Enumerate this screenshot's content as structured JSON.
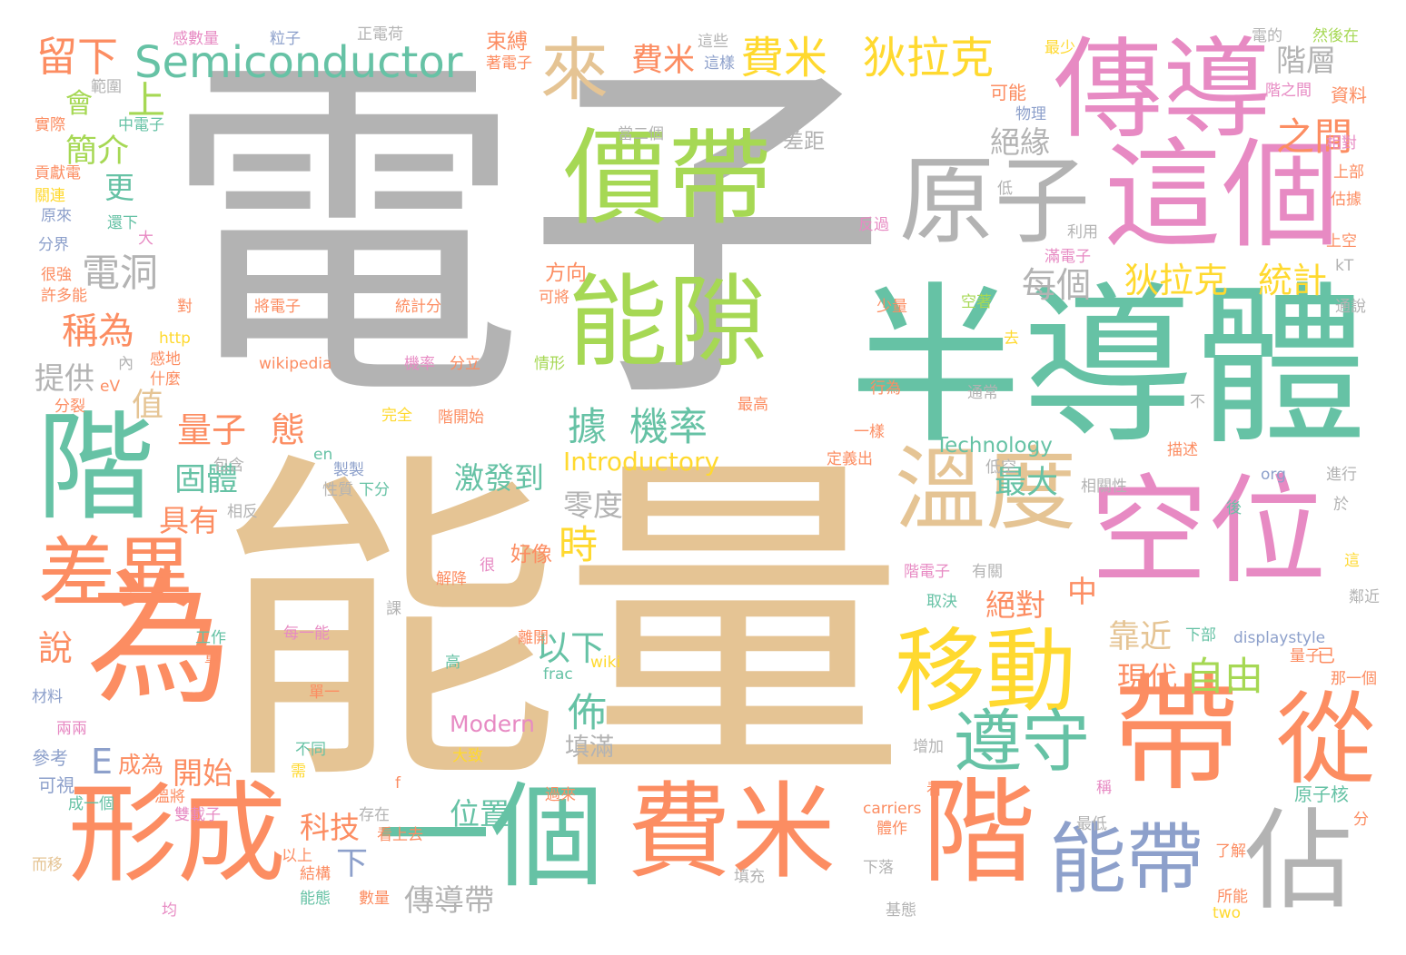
{
  "palette": {
    "grey": "#b3b3b3",
    "tan": "#e5c494",
    "teal": "#66c2a5",
    "green": "#a6d854",
    "pink": "#e78ac3",
    "orange": "#fc8d62",
    "yellow": "#ffd92f",
    "blue": "#8da0cb"
  },
  "words": [
    {
      "text": "電子",
      "color": "grey"
    },
    {
      "text": "能量",
      "color": "tan"
    },
    {
      "text": "半導體",
      "color": "teal"
    },
    {
      "text": "傳導",
      "color": "pink"
    },
    {
      "text": "這個",
      "color": "pink"
    },
    {
      "text": "空位",
      "color": "pink"
    },
    {
      "text": "帶",
      "color": "orange"
    },
    {
      "text": "從",
      "color": "orange"
    },
    {
      "text": "價帶",
      "color": "green"
    },
    {
      "text": "能隙",
      "color": "green"
    },
    {
      "text": "原子",
      "color": "grey"
    },
    {
      "text": "溫度",
      "color": "tan"
    },
    {
      "text": "移動",
      "color": "yellow"
    },
    {
      "text": "為",
      "color": "orange"
    },
    {
      "text": "階",
      "color": "teal"
    },
    {
      "text": "形成",
      "color": "orange"
    },
    {
      "text": "一個",
      "color": "teal"
    },
    {
      "text": "費米",
      "color": "orange"
    },
    {
      "text": "階",
      "color": "orange"
    },
    {
      "text": "能帶",
      "color": "blue"
    },
    {
      "text": "佔",
      "color": "grey"
    },
    {
      "text": "差異",
      "color": "orange"
    },
    {
      "text": "遵守",
      "color": "teal"
    },
    {
      "text": "來",
      "color": "tan"
    },
    {
      "text": "上",
      "color": "green"
    },
    {
      "text": "Semiconductor",
      "color": "teal"
    },
    {
      "text": "留下",
      "color": "orange"
    },
    {
      "text": "費米",
      "color": "yellow"
    },
    {
      "text": "狄拉克",
      "color": "yellow"
    },
    {
      "text": "費米",
      "color": "orange"
    },
    {
      "text": "階層",
      "color": "grey"
    },
    {
      "text": "之間",
      "color": "orange"
    },
    {
      "text": "電洞",
      "color": "grey"
    },
    {
      "text": "稱為",
      "color": "orange"
    },
    {
      "text": "簡介",
      "color": "green"
    },
    {
      "text": "更",
      "color": "teal"
    },
    {
      "text": "會",
      "color": "green"
    },
    {
      "text": "提供",
      "color": "grey"
    },
    {
      "text": "值",
      "color": "tan"
    },
    {
      "text": "量子",
      "color": "orange"
    },
    {
      "text": "態",
      "color": "orange"
    },
    {
      "text": "固體",
      "color": "teal"
    },
    {
      "text": "具有",
      "color": "orange"
    },
    {
      "text": "據",
      "color": "teal"
    },
    {
      "text": "機率",
      "color": "teal"
    },
    {
      "text": "絕緣",
      "color": "grey"
    },
    {
      "text": "每個",
      "color": "grey"
    },
    {
      "text": "狄拉克",
      "color": "yellow"
    },
    {
      "text": "統計",
      "color": "yellow"
    },
    {
      "text": "激發到",
      "color": "teal"
    },
    {
      "text": "零度",
      "color": "grey"
    },
    {
      "text": "時",
      "color": "yellow"
    },
    {
      "text": "最大",
      "color": "teal"
    },
    {
      "text": "絕對",
      "color": "orange"
    },
    {
      "text": "中",
      "color": "orange"
    },
    {
      "text": "靠近",
      "color": "tan"
    },
    {
      "text": "自由",
      "color": "green"
    },
    {
      "text": "現代",
      "color": "orange"
    },
    {
      "text": "以下",
      "color": "teal"
    },
    {
      "text": "佈",
      "color": "teal"
    },
    {
      "text": "說",
      "color": "orange"
    },
    {
      "text": "E",
      "color": "blue"
    },
    {
      "text": "成為",
      "color": "orange"
    },
    {
      "text": "開始",
      "color": "orange"
    },
    {
      "text": "Introductory",
      "color": "yellow"
    },
    {
      "text": "Technology",
      "color": "teal"
    },
    {
      "text": "Modern",
      "color": "pink"
    },
    {
      "text": "位置",
      "color": "teal"
    },
    {
      "text": "填滿",
      "color": "grey"
    },
    {
      "text": "科技",
      "color": "orange"
    },
    {
      "text": "下",
      "color": "blue"
    },
    {
      "text": "傳導帶",
      "color": "grey"
    },
    {
      "text": "好像",
      "color": "orange"
    },
    {
      "text": "方向",
      "color": "orange"
    },
    {
      "text": "差距",
      "color": "grey"
    },
    {
      "text": "感數量",
      "color": "pink"
    },
    {
      "text": "粒子",
      "color": "blue"
    },
    {
      "text": "正電荷",
      "color": "grey"
    },
    {
      "text": "束縛",
      "color": "orange"
    },
    {
      "text": "這些",
      "color": "grey"
    },
    {
      "text": "最少",
      "color": "yellow"
    },
    {
      "text": "電的",
      "color": "grey"
    },
    {
      "text": "然後在",
      "color": "green"
    },
    {
      "text": "著電子",
      "color": "orange"
    },
    {
      "text": "這樣",
      "color": "blue"
    },
    {
      "text": "範圍",
      "color": "grey"
    },
    {
      "text": "可能",
      "color": "orange"
    },
    {
      "text": "階之間",
      "color": "pink"
    },
    {
      "text": "資料",
      "color": "orange"
    },
    {
      "text": "實際",
      "color": "orange"
    },
    {
      "text": "中電子",
      "color": "teal"
    },
    {
      "text": "物理",
      "color": "blue"
    },
    {
      "text": "當二個",
      "color": "grey"
    },
    {
      "text": "相對",
      "color": "pink"
    },
    {
      "text": "貢獻電",
      "color": "orange"
    },
    {
      "text": "上部",
      "color": "orange"
    },
    {
      "text": "關連",
      "color": "yellow"
    },
    {
      "text": "低",
      "color": "grey"
    },
    {
      "text": "估據",
      "color": "orange"
    },
    {
      "text": "原來",
      "color": "blue"
    },
    {
      "text": "還下",
      "color": "teal"
    },
    {
      "text": "大",
      "color": "pink"
    },
    {
      "text": "反過",
      "color": "pink"
    },
    {
      "text": "利用",
      "color": "grey"
    },
    {
      "text": "上空",
      "color": "orange"
    },
    {
      "text": "分界",
      "color": "blue"
    },
    {
      "text": "滿電子",
      "color": "pink"
    },
    {
      "text": "kT",
      "color": "grey"
    },
    {
      "text": "很強",
      "color": "orange"
    },
    {
      "text": "許多能",
      "color": "orange"
    },
    {
      "text": "對",
      "color": "orange"
    },
    {
      "text": "將電子",
      "color": "orange"
    },
    {
      "text": "統計分",
      "color": "orange"
    },
    {
      "text": "可將",
      "color": "orange"
    },
    {
      "text": "少量",
      "color": "orange"
    },
    {
      "text": "空著",
      "color": "green"
    },
    {
      "text": "通說",
      "color": "grey"
    },
    {
      "text": "http",
      "color": "yellow"
    },
    {
      "text": "感地",
      "color": "orange"
    },
    {
      "text": "內",
      "color": "grey"
    },
    {
      "text": "wikipedia",
      "color": "orange"
    },
    {
      "text": "機率",
      "color": "pink"
    },
    {
      "text": "分立",
      "color": "orange"
    },
    {
      "text": "情形",
      "color": "green"
    },
    {
      "text": "去",
      "color": "yellow"
    },
    {
      "text": "eV",
      "color": "orange"
    },
    {
      "text": "什麼",
      "color": "orange"
    },
    {
      "text": "行為",
      "color": "orange"
    },
    {
      "text": "通常",
      "color": "grey"
    },
    {
      "text": "分裂",
      "color": "orange"
    },
    {
      "text": "完全",
      "color": "yellow"
    },
    {
      "text": "階開始",
      "color": "orange"
    },
    {
      "text": "最高",
      "color": "orange"
    },
    {
      "text": "不",
      "color": "grey"
    },
    {
      "text": "一樣",
      "color": "orange"
    },
    {
      "text": "en",
      "color": "teal"
    },
    {
      "text": "包含",
      "color": "grey"
    },
    {
      "text": "製製",
      "color": "blue"
    },
    {
      "text": "描述",
      "color": "orange"
    },
    {
      "text": "定義出",
      "color": "orange"
    },
    {
      "text": "低空",
      "color": "grey"
    },
    {
      "text": "org",
      "color": "blue"
    },
    {
      "text": "進行",
      "color": "grey"
    },
    {
      "text": "性質",
      "color": "grey"
    },
    {
      "text": "下分",
      "color": "teal"
    },
    {
      "text": "相關性",
      "color": "grey"
    },
    {
      "text": "於",
      "color": "grey"
    },
    {
      "text": "相反",
      "color": "grey"
    },
    {
      "text": "後",
      "color": "teal"
    },
    {
      "text": "這",
      "color": "yellow"
    },
    {
      "text": "解降",
      "color": "orange"
    },
    {
      "text": "很",
      "color": "pink"
    },
    {
      "text": "階電子",
      "color": "pink"
    },
    {
      "text": "有關",
      "color": "grey"
    },
    {
      "text": "取決",
      "color": "teal"
    },
    {
      "text": "鄰近",
      "color": "grey"
    },
    {
      "text": "課",
      "color": "grey"
    },
    {
      "text": "工作",
      "color": "teal"
    },
    {
      "text": "每一能",
      "color": "pink"
    },
    {
      "text": "離開",
      "color": "orange"
    },
    {
      "text": "下部",
      "color": "teal"
    },
    {
      "text": "displaystyle",
      "color": "blue"
    },
    {
      "text": "量",
      "color": "orange"
    },
    {
      "text": "高",
      "color": "teal"
    },
    {
      "text": "wiki",
      "color": "yellow"
    },
    {
      "text": "frac",
      "color": "teal"
    },
    {
      "text": "量子",
      "color": "orange"
    },
    {
      "text": "那一個",
      "color": "orange"
    },
    {
      "text": "材料",
      "color": "blue"
    },
    {
      "text": "單一",
      "color": "orange"
    },
    {
      "text": "兩兩",
      "color": "pink"
    },
    {
      "text": "已",
      "color": "orange"
    },
    {
      "text": "參考",
      "color": "blue"
    },
    {
      "text": "不同",
      "color": "teal"
    },
    {
      "text": "增加",
      "color": "grey"
    },
    {
      "text": "可視",
      "color": "blue"
    },
    {
      "text": "需",
      "color": "yellow"
    },
    {
      "text": "大致",
      "color": "yellow"
    },
    {
      "text": "f",
      "color": "orange"
    },
    {
      "text": "看",
      "color": "orange"
    },
    {
      "text": "稱",
      "color": "pink"
    },
    {
      "text": "原子核",
      "color": "teal"
    },
    {
      "text": "成一個",
      "color": "teal"
    },
    {
      "text": "溫將",
      "color": "orange"
    },
    {
      "text": "過來",
      "color": "orange"
    },
    {
      "text": "雙載子",
      "color": "pink"
    },
    {
      "text": "carriers",
      "color": "orange"
    },
    {
      "text": "存在",
      "color": "grey"
    },
    {
      "text": "最低",
      "color": "grey"
    },
    {
      "text": "分",
      "color": "orange"
    },
    {
      "text": "看上去",
      "color": "orange"
    },
    {
      "text": "體作",
      "color": "orange"
    },
    {
      "text": "以上",
      "color": "orange"
    },
    {
      "text": "而移",
      "color": "tan"
    },
    {
      "text": "結構",
      "color": "orange"
    },
    {
      "text": "填充",
      "color": "grey"
    },
    {
      "text": "下落",
      "color": "grey"
    },
    {
      "text": "了解",
      "color": "orange"
    },
    {
      "text": "能態",
      "color": "teal"
    },
    {
      "text": "數量",
      "color": "orange"
    },
    {
      "text": "所能",
      "color": "orange"
    },
    {
      "text": "均",
      "color": "pink"
    },
    {
      "text": "基態",
      "color": "grey"
    },
    {
      "text": "two",
      "color": "yellow"
    }
  ]
}
